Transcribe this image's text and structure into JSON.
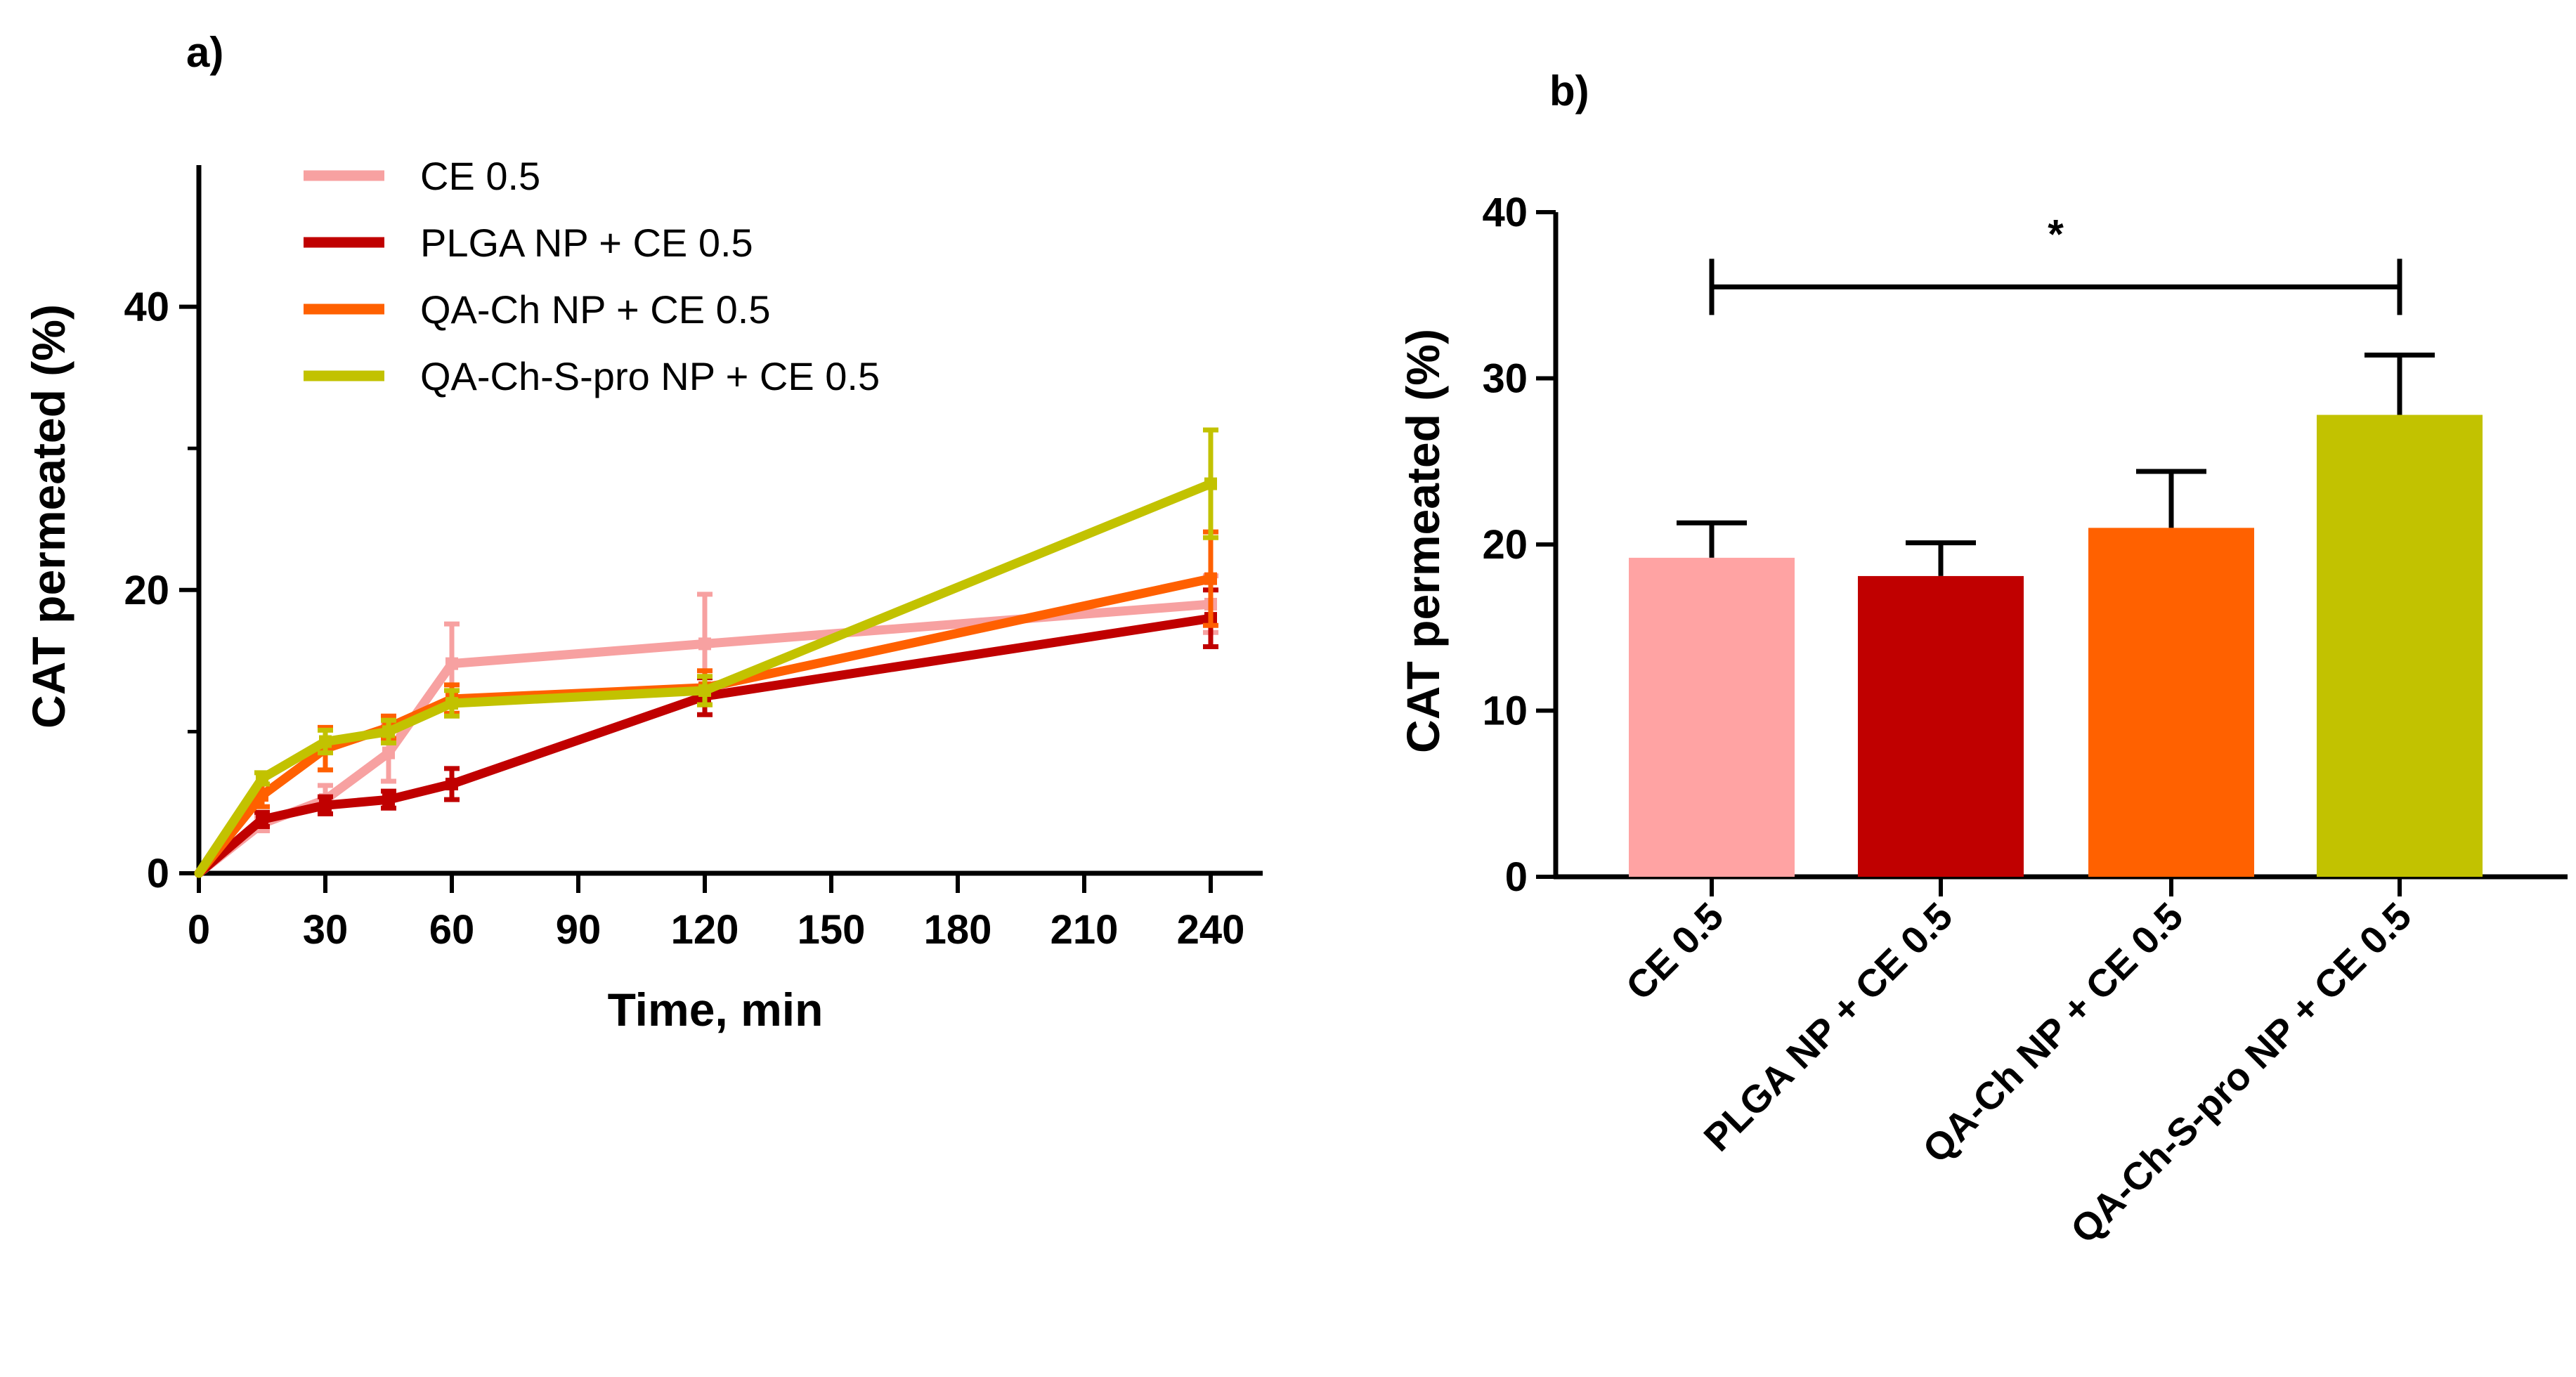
{
  "chart_data": [
    {
      "panel": "a)",
      "type": "line",
      "xlabel": "Time, min",
      "ylabel": "CAT permeated (%)",
      "xlim": [
        0,
        250
      ],
      "ylim": [
        0,
        50
      ],
      "xticks": [
        0,
        30,
        60,
        90,
        120,
        150,
        180,
        210,
        240
      ],
      "yticks": [
        0,
        20,
        40
      ],
      "legend_position": "top-left",
      "series": [
        {
          "name": "CE 0.5",
          "color": "#f7a1a1",
          "x": [
            0,
            15,
            30,
            45,
            60,
            120,
            240
          ],
          "y": [
            0,
            3.5,
            5.2,
            8.5,
            14.8,
            16.2,
            19.0
          ],
          "err": [
            0,
            0.5,
            1.0,
            2.0,
            2.8,
            3.5,
            2.0
          ]
        },
        {
          "name": "PLGA NP + CE 0.5",
          "color": "#c00000",
          "x": [
            0,
            15,
            30,
            45,
            60,
            120,
            240
          ],
          "y": [
            0,
            3.8,
            4.8,
            5.2,
            6.3,
            12.5,
            18.0
          ],
          "err": [
            0,
            0.5,
            0.6,
            0.6,
            1.1,
            1.3,
            2.0
          ]
        },
        {
          "name": "QA-Ch NP + CE 0.5",
          "color": "#ff6000",
          "x": [
            0,
            15,
            30,
            45,
            60,
            120,
            240
          ],
          "y": [
            0,
            5.5,
            8.8,
            10.3,
            12.3,
            13.1,
            20.8
          ],
          "err": [
            0,
            0.8,
            1.5,
            0.8,
            1.0,
            1.2,
            3.3
          ]
        },
        {
          "name": "QA-Ch-S-pro NP + CE 0.5",
          "color": "#c2c200",
          "x": [
            0,
            15,
            30,
            45,
            60,
            120,
            240
          ],
          "y": [
            0,
            6.7,
            9.3,
            10.0,
            12.0,
            12.9,
            27.5
          ],
          "err": [
            0,
            0.4,
            0.8,
            0.8,
            0.9,
            1.0,
            3.8
          ]
        }
      ]
    },
    {
      "panel": "b)",
      "type": "bar",
      "ylabel": "CAT permeated (%)",
      "ylim": [
        0,
        40
      ],
      "yticks": [
        0,
        10,
        20,
        30,
        40
      ],
      "categories": [
        "CE 0.5",
        "PLGA NP + CE 0.5",
        "QA-Ch NP + CE 0.5",
        "QA-Ch-S-pro NP + CE 0.5"
      ],
      "values": [
        19.2,
        18.1,
        21.0,
        27.8
      ],
      "errors": [
        2.1,
        2.0,
        3.4,
        3.6
      ],
      "colors": [
        "#ffa3a3",
        "#c00000",
        "#ff6100",
        "#c2c200"
      ],
      "significance": {
        "label": "*",
        "from": "CE 0.5",
        "to": "QA-Ch-S-pro NP + CE 0.5",
        "y": 35.5
      }
    }
  ]
}
